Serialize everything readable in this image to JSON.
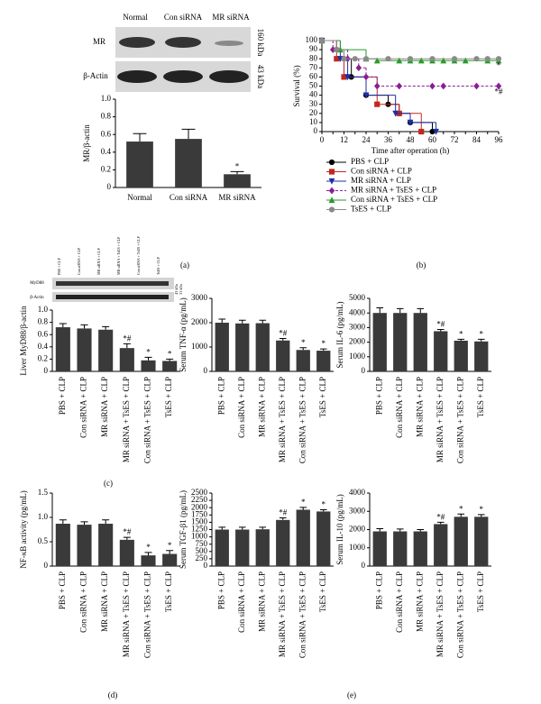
{
  "panel_labels": [
    "(a)",
    "(b)",
    "(c)",
    "(d)",
    "(e)"
  ],
  "blots": [
    {
      "lanes": [
        "Normal",
        "Con siRNA",
        "MR siRNA"
      ],
      "rows": [
        "MR",
        "β-Actin"
      ],
      "sizes": [
        "160 kDa",
        "43 kDa"
      ]
    },
    {
      "rows": [
        "MyD88",
        "β-Actin"
      ],
      "sizes": [
        "43 kDa",
        "31 kDa"
      ]
    }
  ],
  "chart_data": [
    {
      "type": "bar",
      "ylabel": "MR/β-actin",
      "categories": [
        "Normal",
        "Con siRNA",
        "MR siRNA"
      ],
      "values": [
        0.52,
        0.55,
        0.15
      ],
      "errors": [
        0.09,
        0.11,
        0.03
      ],
      "value_annotations": [
        null,
        null,
        "*"
      ],
      "color": "#3a3a3a",
      "ylim": [
        0,
        1
      ],
      "yticks": [
        0,
        0.2,
        0.4,
        0.6,
        0.8,
        {
          "value": 1,
          "label": "1.0"
        }
      ]
    },
    {
      "type": "line",
      "step": true,
      "xlabel": "Time after operation (h)",
      "ylabel": "Survival (%)",
      "xlim": [
        0,
        96
      ],
      "xticks": [
        0,
        6,
        12,
        18,
        24,
        30,
        36,
        42,
        48,
        54,
        60,
        66,
        72,
        78,
        84,
        90,
        96
      ],
      "ylim": [
        0,
        100
      ],
      "yticks": [
        0,
        10,
        20,
        30,
        40,
        50,
        60,
        70,
        80,
        90,
        100
      ],
      "annotations": [
        "*",
        "*#"
      ],
      "series": [
        {
          "name": "PBS + CLP",
          "color": "#000000",
          "marker": "circle",
          "x": [
            0,
            8,
            12,
            16,
            24,
            36,
            42,
            48,
            60
          ],
          "values": [
            100,
            90,
            80,
            60,
            40,
            30,
            20,
            10,
            0
          ]
        },
        {
          "name": "Con siRNA + CLP",
          "color": "#c0281e",
          "marker": "square",
          "x": [
            0,
            8,
            12,
            30,
            42,
            54
          ],
          "values": [
            100,
            80,
            60,
            30,
            20,
            0
          ]
        },
        {
          "name": "MR siRNA + CLP",
          "color": "#1c2fa6",
          "marker": "triangle-down",
          "x": [
            0,
            10,
            14,
            24,
            40,
            48,
            62
          ],
          "values": [
            100,
            80,
            60,
            40,
            20,
            10,
            0
          ]
        },
        {
          "name": "MR siRNA + TsES + CLP",
          "color": "#8a1e96",
          "marker": "diamond",
          "dash": true,
          "x": [
            0,
            6,
            14,
            20,
            24,
            30,
            42,
            60,
            66,
            84,
            96
          ],
          "values": [
            100,
            90,
            80,
            70,
            60,
            50,
            50,
            50,
            50,
            50,
            50
          ]
        },
        {
          "name": "Con siRNA + TsES + CLP",
          "color": "#2a9a2a",
          "marker": "triangle-up",
          "x": [
            0,
            10,
            24,
            30,
            42,
            48,
            54,
            60,
            66,
            72,
            78,
            90,
            96
          ],
          "values": [
            100,
            90,
            80,
            78,
            78,
            78,
            78,
            78,
            78,
            78,
            78,
            78,
            78
          ]
        },
        {
          "name": "TsES + CLP",
          "color": "#8a8a8a",
          "marker": "circle",
          "x": [
            0,
            8,
            12,
            18,
            24,
            36,
            48,
            60,
            72,
            84,
            90,
            96
          ],
          "values": [
            100,
            90,
            80,
            80,
            80,
            80,
            80,
            80,
            80,
            80,
            80,
            80
          ]
        }
      ]
    },
    {
      "type": "bar",
      "ylabel": "Liver MyD88/β-actin",
      "categories": [
        "PBS + CLP",
        "Con siRNA + CLP",
        "MR siRNA + CLP",
        "MR siRNA + TsES + CLP",
        "Con siRNA + TsES + CLP",
        "TsES + CLP"
      ],
      "values": [
        0.72,
        0.7,
        0.68,
        0.38,
        0.18,
        0.17
      ],
      "errors": [
        0.06,
        0.06,
        0.05,
        0.07,
        0.05,
        0.03
      ],
      "value_annotations": [
        null,
        null,
        null,
        "*#",
        "*",
        "*"
      ],
      "color": "#3a3a3a",
      "ylim": [
        0,
        1
      ],
      "yticks": [
        0,
        0.2,
        0.4,
        0.6,
        0.8,
        {
          "value": 1,
          "label": "1.0"
        }
      ]
    },
    {
      "type": "bar",
      "ylabel": "Serum TNF-α (pg/mL)",
      "categories": [
        "PBS + CLP",
        "Con siRNA + CLP",
        "MR siRNA + CLP",
        "MR siRNA + TsES + CLP",
        "Con siRNA + TsES + CLP",
        "TsES + CLP"
      ],
      "values": [
        2000,
        1970,
        1980,
        1270,
        880,
        850
      ],
      "errors": [
        150,
        130,
        120,
        80,
        90,
        70
      ],
      "value_annotations": [
        null,
        null,
        null,
        "*#",
        "*",
        "*"
      ],
      "color": "#3a3a3a",
      "ylim": [
        0,
        3000
      ],
      "yticks": [
        0,
        1000,
        2000,
        3000
      ]
    },
    {
      "type": "bar",
      "ylabel": "Serum IL-6 (pg/mL)",
      "categories": [
        "PBS + CLP",
        "Con siRNA + CLP",
        "MR siRNA + CLP",
        "MR siRNA + TsES + CLP",
        "Con siRNA + TsES + CLP",
        "TsES + CLP"
      ],
      "values": [
        4000,
        4000,
        4000,
        2750,
        2100,
        2050
      ],
      "errors": [
        350,
        300,
        300,
        120,
        100,
        150
      ],
      "value_annotations": [
        null,
        null,
        null,
        "*#",
        "*",
        "*"
      ],
      "color": "#3a3a3a",
      "ylim": [
        0,
        5000
      ],
      "yticks": [
        0,
        1000,
        2000,
        3000,
        4000,
        5000
      ]
    },
    {
      "type": "bar",
      "ylabel": "NF-κB activity (pg/mL)",
      "categories": [
        "PBS + CLP",
        "Con siRNA + CLP",
        "MR siRNA + CLP",
        "MR siRNA + TsES + CLP",
        "Con siRNA + TsES + CLP",
        "TsES + CLP"
      ],
      "values": [
        0.87,
        0.85,
        0.87,
        0.54,
        0.22,
        0.25
      ],
      "errors": [
        0.08,
        0.06,
        0.08,
        0.05,
        0.06,
        0.07
      ],
      "value_annotations": [
        null,
        null,
        null,
        "*#",
        "*",
        "*"
      ],
      "color": "#3a3a3a",
      "ylim": [
        0,
        1.5
      ],
      "yticks": [
        0,
        0.5,
        {
          "value": 1,
          "label": "1.0"
        },
        1.5
      ]
    },
    {
      "type": "bar",
      "ylabel": "Serum TGF-β1 (pg/mL)",
      "categories": [
        "PBS + CLP",
        "Con siRNA + CLP",
        "MR siRNA + CLP",
        "MR siRNA + TsES + CLP",
        "Con siRNA + TsES + CLP",
        "TsES + CLP"
      ],
      "values": [
        1250,
        1250,
        1260,
        1580,
        1930,
        1870
      ],
      "errors": [
        80,
        80,
        70,
        70,
        80,
        60
      ],
      "value_annotations": [
        null,
        null,
        null,
        "*#",
        "*",
        "*"
      ],
      "color": "#3a3a3a",
      "ylim": [
        0,
        2500
      ],
      "yticks": [
        0,
        250,
        500,
        750,
        1000,
        1250,
        1500,
        1750,
        2000,
        2250,
        2500
      ]
    },
    {
      "type": "bar",
      "ylabel": "Serum IL-10 (pg/mL)",
      "categories": [
        "PBS + CLP",
        "Con siRNA + CLP",
        "MR siRNA + CLP",
        "MR siRNA + TsES + CLP",
        "Con siRNA + TsES + CLP",
        "TsES + CLP"
      ],
      "values": [
        1900,
        1900,
        1900,
        2300,
        2700,
        2700
      ],
      "errors": [
        150,
        130,
        100,
        100,
        150,
        120
      ],
      "value_annotations": [
        null,
        null,
        null,
        "*#",
        "*",
        "*"
      ],
      "color": "#3a3a3a",
      "ylim": [
        0,
        4000
      ],
      "yticks": [
        0,
        1000,
        2000,
        3000,
        4000
      ]
    }
  ]
}
